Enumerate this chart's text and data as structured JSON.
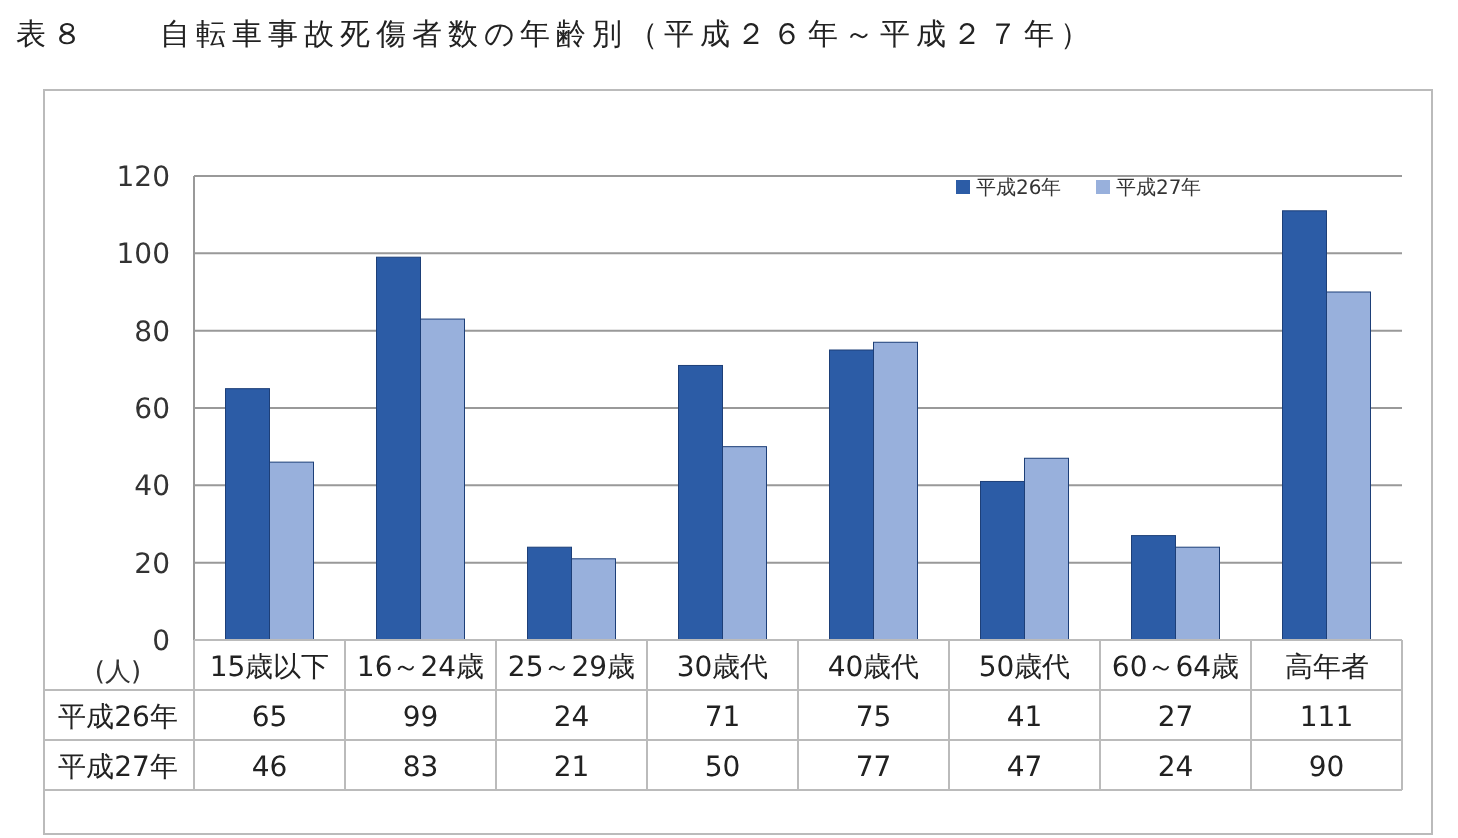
{
  "chart_data": {
    "type": "bar",
    "title": "表８　　自転車事故死傷者数の年齢別（平成２６年～平成２７年）",
    "ylabel": "(人)",
    "categories": [
      "15歳以下",
      "16～24歳",
      "25～29歳",
      "30歳代",
      "40歳代",
      "50歳代",
      "60～64歳",
      "高年者"
    ],
    "series": [
      {
        "name": "平成26年",
        "color": "#2c5ca6",
        "values": [
          65,
          99,
          24,
          71,
          75,
          41,
          27,
          111
        ]
      },
      {
        "name": "平成27年",
        "color": "#98b0dc",
        "values": [
          46,
          83,
          21,
          50,
          77,
          47,
          24,
          90
        ]
      }
    ],
    "ylim": [
      0,
      120
    ],
    "yticks": [
      0,
      20,
      40,
      60,
      80,
      100,
      120
    ],
    "grid": "y",
    "legend": "top right",
    "data_labels": true
  }
}
